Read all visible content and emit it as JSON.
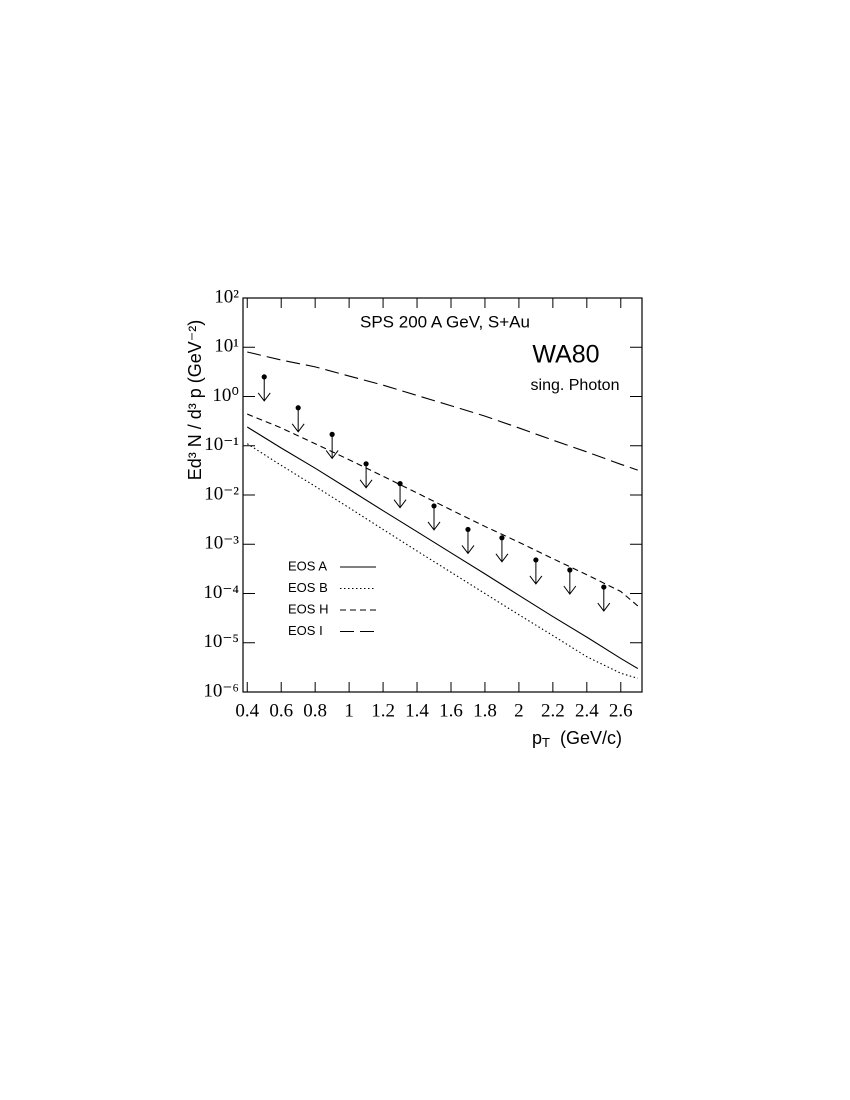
{
  "chart_data": {
    "type": "line",
    "annotations": [
      "SPS 200 A GeV, S+Au",
      "WA80",
      "sing. Photon"
    ],
    "x_label": {
      "main": "p",
      "sub": "T",
      "unit": "(GeV/c)"
    },
    "y_label": "Ed³ N / d³ p  (GeV⁻²)",
    "xlim": [
      0.375,
      2.725
    ],
    "ylim": [
      1e-06,
      100
    ],
    "log_y": true,
    "xticks": [
      0.4,
      0.6,
      0.8,
      1,
      1.2,
      1.4,
      1.6,
      1.8,
      2,
      2.2,
      2.4,
      2.6
    ],
    "yticks": [
      {
        "value": 1e-06,
        "label": "10⁻⁶"
      },
      {
        "value": 1e-05,
        "label": "10⁻⁵"
      },
      {
        "value": 0.0001,
        "label": "10⁻⁴"
      },
      {
        "value": 0.001,
        "label": "10⁻³"
      },
      {
        "value": 0.01,
        "label": "10⁻²"
      },
      {
        "value": 0.1,
        "label": "10⁻¹"
      },
      {
        "value": 1,
        "label": "10⁰"
      },
      {
        "value": 10,
        "label": "10¹"
      },
      {
        "value": 100,
        "label": "10²"
      }
    ],
    "series": [
      {
        "name": "EOS A",
        "color": "#000000",
        "dash": "none",
        "legend": true,
        "x": [
          0.4,
          0.6,
          0.8,
          1.0,
          1.2,
          1.4,
          1.6,
          1.8,
          2.0,
          2.2,
          2.4,
          2.6,
          2.7
        ],
        "values": [
          0.24,
          0.09,
          0.035,
          0.013,
          0.0048,
          0.0018,
          0.00067,
          0.00025,
          9.2e-05,
          3.4e-05,
          1.3e-05,
          4.8e-06,
          3e-06
        ]
      },
      {
        "name": "EOS B",
        "color": "#000000",
        "dash": "1.5,2.5",
        "legend": true,
        "x": [
          0.4,
          0.6,
          0.8,
          1.0,
          1.2,
          1.4,
          1.6,
          1.8,
          2.0,
          2.2,
          2.4,
          2.6,
          2.7
        ],
        "values": [
          0.11,
          0.04,
          0.015,
          0.0055,
          0.002,
          0.00073,
          0.00027,
          0.0001,
          3.7e-05,
          1.4e-05,
          5.2e-06,
          2.4e-06,
          1.9e-06
        ]
      },
      {
        "name": "EOS H",
        "color": "#000000",
        "dash": "6,4",
        "legend": true,
        "x": [
          0.4,
          0.6,
          0.8,
          1.0,
          1.2,
          1.4,
          1.6,
          1.8,
          2.0,
          2.2,
          2.4,
          2.6,
          2.7
        ],
        "values": [
          0.44,
          0.23,
          0.11,
          0.052,
          0.024,
          0.011,
          0.005,
          0.0023,
          0.0011,
          0.00051,
          0.00024,
          0.00011,
          5.6e-05
        ]
      },
      {
        "name": "EOS I",
        "color": "#000000",
        "dash": "14,6",
        "legend": true,
        "x": [
          0.4,
          0.6,
          0.8,
          1.0,
          1.2,
          1.4,
          1.6,
          1.8,
          2.0,
          2.2,
          2.4,
          2.6,
          2.7
        ],
        "values": [
          8,
          5.5,
          4,
          2.6,
          1.7,
          1.05,
          0.65,
          0.4,
          0.23,
          0.13,
          0.075,
          0.042,
          0.032
        ]
      },
      {
        "type": "upper_limit",
        "color": "#000000",
        "legend": false,
        "x": [
          0.5,
          0.7,
          0.9,
          1.1,
          1.3,
          1.5,
          1.7,
          1.9,
          2.1,
          2.3,
          2.5
        ],
        "values": [
          2.5,
          0.59,
          0.17,
          0.043,
          0.017,
          0.006,
          0.002,
          0.00135,
          0.00048,
          0.0003,
          0.000135
        ]
      }
    ]
  }
}
